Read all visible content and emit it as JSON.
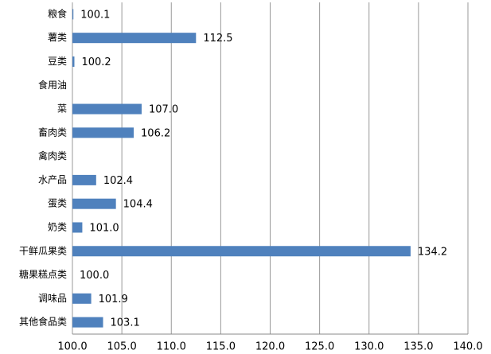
{
  "chart_data": {
    "type": "bar",
    "orientation": "horizontal",
    "categories": [
      "粮食",
      "薯类",
      "豆类",
      "食用油",
      "菜",
      "畜肉类",
      "禽肉类",
      "水产品",
      "蛋类",
      "奶类",
      "干鲜瓜果类",
      "糖果糕点类",
      "调味品",
      "其他食品类"
    ],
    "values": [
      100.1,
      112.5,
      100.2,
      null,
      107.0,
      106.2,
      null,
      102.4,
      104.4,
      101.0,
      134.2,
      100.0,
      101.9,
      103.1
    ],
    "value_labels": [
      "100.1",
      "112.5",
      "100.2",
      null,
      "107.0",
      "106.2",
      null,
      "102.4",
      "104.4",
      "101.0",
      "134.2",
      "100.0",
      "101.9",
      "103.1"
    ],
    "color": "#4f81bd",
    "xlim": [
      100,
      140
    ],
    "xticks": [
      {
        "value": 100,
        "label": "100.0"
      },
      {
        "value": 105,
        "label": "105.0"
      },
      {
        "value": 110,
        "label": "110.0"
      },
      {
        "value": 115,
        "label": "115.0"
      },
      {
        "value": 120,
        "label": "120.0"
      },
      {
        "value": 125,
        "label": "125.0"
      },
      {
        "value": 130,
        "label": "130.0"
      },
      {
        "value": 135,
        "label": "135.0"
      },
      {
        "value": 140,
        "label": "140.0"
      }
    ],
    "grid": true
  }
}
